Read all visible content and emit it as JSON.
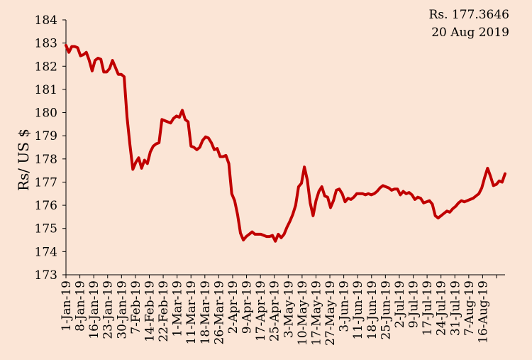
{
  "chart_data": {
    "type": "line",
    "title": "",
    "ylabel": "Rs/ US $",
    "xlabel": "",
    "ylim": [
      173,
      184
    ],
    "yticks": [
      173,
      174,
      175,
      176,
      177,
      178,
      179,
      180,
      181,
      182,
      183,
      184
    ],
    "grid": false,
    "legend": "none",
    "line_color": "#c00000",
    "background": "#fbe5d6",
    "annotation": [
      "Rs. 177.3646",
      "20 Aug 2019"
    ],
    "xticks": [
      "1-Jan-19",
      "8-Jan-19",
      "16-Jan-19",
      "23-Jan-19",
      "30-Jan-19",
      "7-Feb-19",
      "14-Feb-19",
      "22-Feb-19",
      "1-Mar-19",
      "11-Mar-19",
      "18-Mar-19",
      "26-Mar-19",
      "2-Apr-19",
      "9-Apr-19",
      "17-Apr-19",
      "25-Apr-19",
      "3-May-19",
      "10-May-19",
      "17-May-19",
      "27-May-19",
      "3-Jun-19",
      "11-Jun-19",
      "18-Jun-19",
      "25-Jun-19",
      "2-Jul-19",
      "9-Jul-19",
      "17-Jul-19",
      "24-Jul-19",
      "31-Jul-19",
      "7-Aug-19",
      "16-Aug-19"
    ],
    "series": [
      {
        "values": [
          182.9,
          182.6,
          182.85,
          182.85,
          182.8,
          182.45,
          182.5,
          182.6,
          182.25,
          181.8,
          182.25,
          182.35,
          182.3,
          181.75,
          181.75,
          181.9,
          182.25,
          181.95,
          181.65,
          181.65,
          181.55,
          179.8,
          178.6,
          177.55,
          177.85,
          178.05,
          177.6,
          177.95,
          177.8,
          178.3,
          178.55,
          178.65,
          178.7,
          179.7,
          179.65,
          179.6,
          179.55,
          179.75,
          179.85,
          179.8,
          180.1,
          179.7,
          179.6,
          178.55,
          178.5,
          178.4,
          178.5,
          178.8,
          178.95,
          178.9,
          178.7,
          178.4,
          178.45,
          178.1,
          178.1,
          178.15,
          177.8,
          176.5,
          176.2,
          175.6,
          174.8,
          174.5,
          174.65,
          174.75,
          174.85,
          174.75,
          174.75,
          174.75,
          174.7,
          174.65,
          174.65,
          174.7,
          174.45,
          174.75,
          174.6,
          174.75,
          175.05,
          175.3,
          175.6,
          176.0,
          176.8,
          176.95,
          177.65,
          177.1,
          176.1,
          175.55,
          176.2,
          176.6,
          176.8,
          176.4,
          176.35,
          175.9,
          176.2,
          176.65,
          176.7,
          176.5,
          176.15,
          176.3,
          176.25,
          176.35,
          176.5,
          176.5,
          176.5,
          176.45,
          176.5,
          176.45,
          176.5,
          176.6,
          176.75,
          176.85,
          176.8,
          176.75,
          176.65,
          176.7,
          176.7,
          176.45,
          176.6,
          176.5,
          176.55,
          176.45,
          176.25,
          176.35,
          176.3,
          176.1,
          176.15,
          176.2,
          176.05,
          175.55,
          175.45,
          175.55,
          175.65,
          175.75,
          175.7,
          175.85,
          175.95,
          176.1,
          176.2,
          176.15,
          176.2,
          176.25,
          176.3,
          176.4,
          176.5,
          176.75,
          177.2,
          177.6,
          177.25,
          176.85,
          176.9,
          177.05,
          177.0,
          177.36
        ]
      }
    ]
  }
}
